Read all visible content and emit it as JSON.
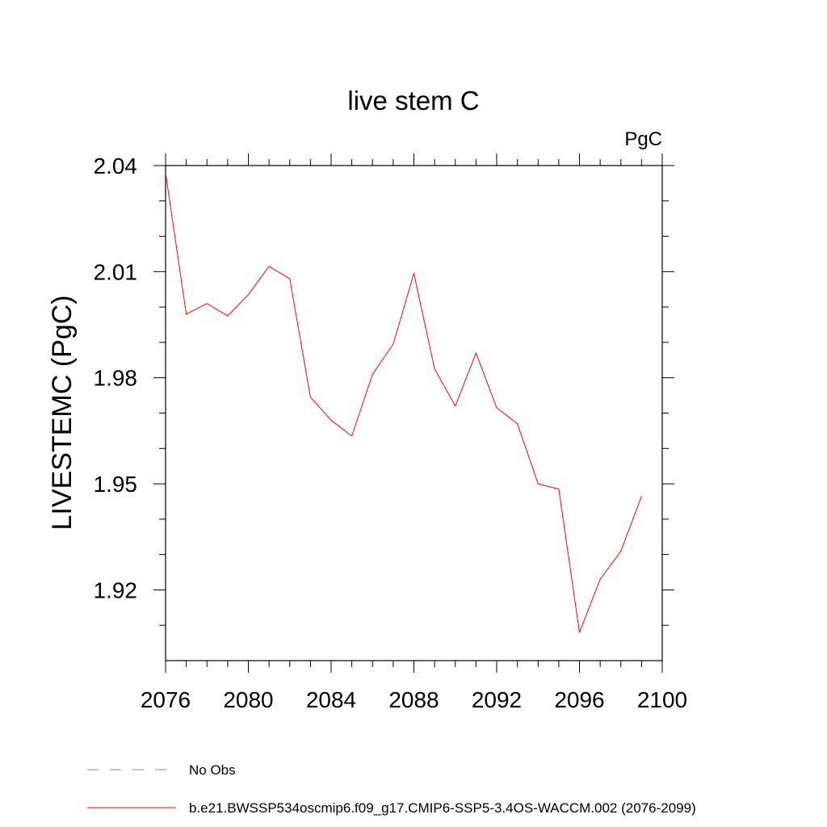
{
  "chart_data": {
    "type": "line",
    "title": "live stem C",
    "units_label": "PgC",
    "ylabel": "LIVESTEMC  (PgC)",
    "xlabel": "",
    "xlim": [
      2076,
      2100
    ],
    "ylim": [
      1.9,
      2.04
    ],
    "x_ticks": [
      2076,
      2080,
      2084,
      2088,
      2092,
      2096,
      2100
    ],
    "x_tick_labels": [
      "2076",
      "2080",
      "2084",
      "2088",
      "2092",
      "2096",
      "2100"
    ],
    "y_ticks": [
      1.92,
      1.95,
      1.98,
      2.01,
      2.04
    ],
    "y_tick_labels": [
      "1.92",
      "1.95",
      "1.98",
      "2.01",
      "2.04"
    ],
    "grid": false,
    "series": [
      {
        "name": "b.e21.BWSSP534oscmip6.f09_g17.CMIP6-SSP5-3.4OS-WACCM.002 (2076-2099)",
        "color": "#ff0000",
        "style": "solid",
        "x": [
          2076,
          2077,
          2078,
          2079,
          2080,
          2081,
          2082,
          2083,
          2084,
          2085,
          2086,
          2087,
          2088,
          2089,
          2090,
          2091,
          2092,
          2093,
          2094,
          2095,
          2096,
          2097,
          2098,
          2099
        ],
        "y": [
          2.038,
          1.998,
          2.001,
          1.9975,
          2.0035,
          2.0115,
          2.008,
          1.9745,
          1.968,
          1.9635,
          1.981,
          1.9895,
          2.0095,
          1.9825,
          1.972,
          1.987,
          1.9715,
          1.967,
          1.95,
          1.9485,
          1.908,
          1.923,
          1.931,
          1.9465
        ]
      }
    ],
    "legend": {
      "placement": "bottom",
      "entries": [
        {
          "label": "No Obs",
          "color": "#7f7fbf",
          "style": "dashed"
        },
        {
          "label": "b.e21.BWSSP534oscmip6.f09_g17.CMIP6-SSP5-3.4OS-WACCM.002 (2076-2099)",
          "color": "#ff0000",
          "style": "solid"
        }
      ]
    }
  }
}
